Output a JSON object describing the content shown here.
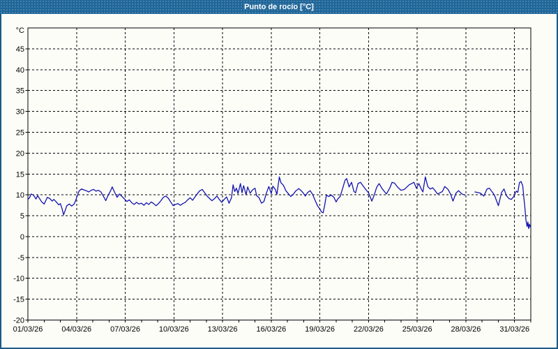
{
  "window": {
    "title": "Punto de rocío [°C]"
  },
  "colors": {
    "titlebar_bg": "#1f6699",
    "titlebar_fg": "#ffffff",
    "window_border": "#1a5a8a",
    "panel_bg": "#fdfdf8",
    "grid": "#000000",
    "frame": "#000000",
    "label": "#000000",
    "line": "#1212b0"
  },
  "chart_data": {
    "type": "line",
    "title": "Punto de rocío [°C]",
    "xlabel": "",
    "ylabel": "°C",
    "grid": true,
    "y_axis": {
      "unit_label": "°C",
      "min": -20,
      "max": 50,
      "tick_step": 5,
      "tick_values": [
        45,
        40,
        35,
        30,
        25,
        20,
        15,
        10,
        5,
        0,
        -5,
        -10,
        -15,
        -20
      ]
    },
    "x_axis": {
      "min_day": 0,
      "max_day": 31,
      "major_tick_every_days": 3,
      "minor_tick_every_days": 1,
      "ticks": [
        {
          "day": 0,
          "label": "01/03/26"
        },
        {
          "day": 3,
          "label": "04/03/26"
        },
        {
          "day": 6,
          "label": "07/03/26"
        },
        {
          "day": 9,
          "label": "10/03/26"
        },
        {
          "day": 12,
          "label": "13/03/26"
        },
        {
          "day": 15,
          "label": "16/03/26"
        },
        {
          "day": 18,
          "label": "19/03/26"
        },
        {
          "day": 21,
          "label": "22/03/26"
        },
        {
          "day": 24,
          "label": "25/03/26"
        },
        {
          "day": 27,
          "label": "28/03/26"
        },
        {
          "day": 30,
          "label": "31/03/26"
        }
      ]
    },
    "series": [
      {
        "name": "Punto de rocío",
        "color": "#1212b0",
        "segments": [
          [
            [
              0.0,
              8.9
            ],
            [
              0.1,
              9.3
            ],
            [
              0.2,
              10.2
            ],
            [
              0.35,
              9.9
            ],
            [
              0.5,
              9.0
            ],
            [
              0.6,
              9.8
            ],
            [
              0.7,
              9.2
            ],
            [
              0.85,
              8.3
            ],
            [
              1.0,
              7.8
            ],
            [
              1.1,
              8.6
            ],
            [
              1.2,
              9.4
            ],
            [
              1.35,
              9.1
            ],
            [
              1.5,
              8.5
            ],
            [
              1.6,
              8.9
            ],
            [
              1.75,
              8.3
            ],
            [
              1.9,
              7.6
            ],
            [
              2.0,
              7.9
            ],
            [
              2.1,
              6.8
            ],
            [
              2.2,
              5.2
            ],
            [
              2.3,
              6.3
            ],
            [
              2.4,
              7.4
            ],
            [
              2.55,
              7.8
            ],
            [
              2.7,
              7.3
            ],
            [
              2.85,
              7.8
            ],
            [
              2.95,
              8.7
            ],
            [
              3.05,
              9.8
            ],
            [
              3.15,
              10.9
            ],
            [
              3.3,
              11.4
            ],
            [
              3.45,
              11.2
            ],
            [
              3.6,
              11.0
            ],
            [
              3.75,
              10.7
            ],
            [
              3.9,
              11.1
            ],
            [
              4.05,
              11.3
            ],
            [
              4.2,
              10.9
            ],
            [
              4.35,
              11.1
            ],
            [
              4.5,
              10.7
            ],
            [
              4.65,
              9.7
            ],
            [
              4.8,
              8.6
            ],
            [
              4.95,
              9.9
            ],
            [
              5.1,
              11.0
            ],
            [
              5.2,
              11.9
            ],
            [
              5.35,
              10.6
            ],
            [
              5.5,
              9.4
            ],
            [
              5.65,
              10.2
            ],
            [
              5.8,
              9.6
            ],
            [
              5.95,
              9.0
            ],
            [
              6.1,
              8.4
            ],
            [
              6.25,
              8.8
            ],
            [
              6.4,
              8.1
            ],
            [
              6.55,
              7.7
            ],
            [
              6.7,
              8.2
            ],
            [
              6.85,
              7.8
            ],
            [
              7.0,
              8.0
            ],
            [
              7.15,
              7.5
            ],
            [
              7.3,
              8.1
            ],
            [
              7.45,
              7.7
            ],
            [
              7.6,
              8.3
            ],
            [
              7.75,
              7.9
            ],
            [
              7.9,
              7.4
            ],
            [
              8.05,
              7.9
            ],
            [
              8.2,
              8.6
            ],
            [
              8.35,
              9.4
            ],
            [
              8.5,
              9.7
            ],
            [
              8.65,
              9.2
            ],
            [
              8.8,
              8.3
            ],
            [
              8.95,
              7.4
            ],
            [
              9.1,
              7.7
            ],
            [
              9.25,
              7.9
            ],
            [
              9.4,
              7.5
            ],
            [
              9.55,
              7.9
            ],
            [
              9.7,
              8.2
            ],
            [
              9.85,
              8.8
            ],
            [
              10.0,
              9.3
            ],
            [
              10.15,
              8.7
            ],
            [
              10.3,
              9.5
            ],
            [
              10.45,
              10.3
            ],
            [
              10.6,
              11.0
            ],
            [
              10.75,
              11.3
            ],
            [
              10.9,
              10.5
            ],
            [
              11.05,
              9.7
            ],
            [
              11.2,
              9.1
            ],
            [
              11.35,
              8.6
            ],
            [
              11.5,
              9.1
            ],
            [
              11.65,
              9.7
            ],
            [
              11.8,
              8.9
            ],
            [
              11.95,
              8.2
            ],
            [
              12.1,
              8.9
            ],
            [
              12.25,
              9.5
            ],
            [
              12.4,
              8.0
            ],
            [
              12.55,
              9.3
            ],
            [
              12.65,
              12.4
            ],
            [
              12.75,
              10.8
            ],
            [
              12.85,
              11.6
            ],
            [
              12.95,
              10.3
            ],
            [
              13.1,
              12.7
            ],
            [
              13.2,
              10.5
            ],
            [
              13.3,
              12.2
            ],
            [
              13.45,
              10.0
            ],
            [
              13.55,
              11.9
            ],
            [
              13.7,
              10.4
            ],
            [
              13.85,
              11.2
            ],
            [
              14.0,
              11.6
            ],
            [
              14.1,
              9.8
            ],
            [
              14.25,
              9.3
            ],
            [
              14.4,
              8.0
            ],
            [
              14.55,
              8.4
            ],
            [
              14.7,
              10.4
            ],
            [
              14.85,
              12.0
            ],
            [
              15.0,
              10.3
            ],
            [
              15.1,
              12.1
            ],
            [
              15.25,
              11.3
            ],
            [
              15.35,
              10.1
            ],
            [
              15.5,
              14.3
            ],
            [
              15.6,
              12.9
            ],
            [
              15.75,
              12.3
            ],
            [
              15.9,
              11.0
            ],
            [
              16.05,
              10.3
            ],
            [
              16.2,
              9.6
            ],
            [
              16.35,
              10.1
            ],
            [
              16.5,
              10.9
            ],
            [
              16.7,
              11.5
            ],
            [
              16.85,
              11.0
            ],
            [
              17.0,
              10.3
            ],
            [
              17.1,
              9.7
            ],
            [
              17.25,
              10.6
            ],
            [
              17.4,
              11.0
            ],
            [
              17.55,
              10.1
            ],
            [
              17.7,
              8.7
            ],
            [
              17.85,
              7.4
            ],
            [
              18.0,
              6.6
            ],
            [
              18.1,
              5.9
            ],
            [
              18.2,
              5.7
            ],
            [
              18.3,
              7.6
            ],
            [
              18.4,
              9.9
            ],
            [
              18.55,
              9.6
            ],
            [
              18.7,
              9.9
            ],
            [
              18.85,
              9.5
            ],
            [
              19.0,
              8.3
            ],
            [
              19.1,
              9.0
            ],
            [
              19.25,
              9.6
            ],
            [
              19.4,
              11.5
            ],
            [
              19.55,
              13.5
            ],
            [
              19.65,
              13.9
            ],
            [
              19.8,
              11.9
            ],
            [
              19.95,
              13.0
            ],
            [
              20.1,
              10.8
            ],
            [
              20.2,
              10.5
            ],
            [
              20.35,
              12.7
            ],
            [
              20.5,
              13.0
            ],
            [
              20.65,
              12.2
            ],
            [
              20.8,
              11.4
            ],
            [
              21.0,
              10.5
            ],
            [
              21.2,
              8.5
            ],
            [
              21.35,
              10.0
            ],
            [
              21.5,
              11.8
            ],
            [
              21.65,
              12.7
            ],
            [
              21.85,
              11.4
            ],
            [
              22.1,
              10.2
            ],
            [
              22.3,
              11.6
            ],
            [
              22.45,
              13.0
            ],
            [
              22.6,
              12.8
            ],
            [
              22.8,
              11.8
            ],
            [
              23.0,
              11.1
            ],
            [
              23.2,
              11.3
            ],
            [
              23.5,
              12.4
            ],
            [
              23.8,
              13.0
            ],
            [
              23.95,
              11.6
            ],
            [
              24.1,
              12.7
            ],
            [
              24.25,
              11.4
            ],
            [
              24.35,
              10.7
            ],
            [
              24.5,
              14.3
            ],
            [
              24.65,
              12.0
            ],
            [
              24.8,
              11.4
            ],
            [
              24.95,
              11.7
            ],
            [
              25.1,
              11.0
            ],
            [
              25.25,
              10.2
            ],
            [
              25.4,
              10.5
            ],
            [
              25.55,
              10.8
            ],
            [
              25.7,
              12.0
            ],
            [
              25.9,
              11.3
            ],
            [
              26.05,
              10.2
            ],
            [
              26.2,
              8.5
            ],
            [
              26.4,
              10.5
            ],
            [
              26.55,
              11.0
            ],
            [
              26.75,
              10.2
            ],
            [
              26.95,
              9.9
            ]
          ],
          [
            [
              27.55,
              10.7
            ],
            [
              27.7,
              10.6
            ],
            [
              27.9,
              10.4
            ],
            [
              28.1,
              9.7
            ],
            [
              28.3,
              11.4
            ],
            [
              28.45,
              11.6
            ],
            [
              28.6,
              10.8
            ],
            [
              28.75,
              10.0
            ],
            [
              29.0,
              7.4
            ],
            [
              29.2,
              10.6
            ],
            [
              29.35,
              11.4
            ],
            [
              29.5,
              9.8
            ],
            [
              29.65,
              9.1
            ],
            [
              29.8,
              8.9
            ],
            [
              29.95,
              9.6
            ],
            [
              30.1,
              10.9
            ],
            [
              30.2,
              10.6
            ],
            [
              30.3,
              12.9
            ],
            [
              30.4,
              13.2
            ],
            [
              30.5,
              12.2
            ],
            [
              30.57,
              9.4
            ],
            [
              30.63,
              7.2
            ],
            [
              30.7,
              4.0
            ],
            [
              30.77,
              2.4
            ],
            [
              30.82,
              3.5
            ],
            [
              30.87,
              1.9
            ],
            [
              30.92,
              3.0
            ],
            [
              30.97,
              2.3
            ]
          ]
        ]
      }
    ]
  }
}
